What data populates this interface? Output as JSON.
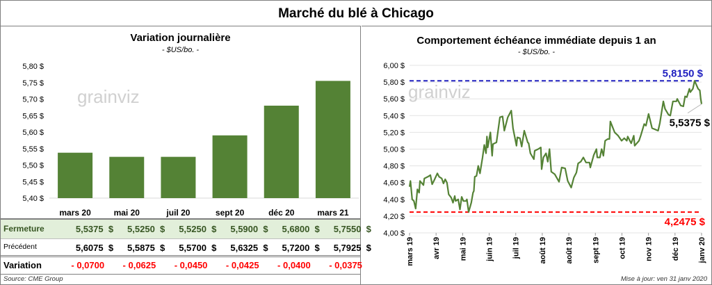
{
  "title": "Marché du blé à Chicago",
  "left_panel": {
    "title": "Variation journalière",
    "subtitle": "- $US/bo. -",
    "watermark": "grainviz",
    "table": {
      "rows": [
        {
          "label": "Fermeture",
          "values": [
            "5,5375  $",
            "5,5250  $",
            "5,5250  $",
            "5,5900  $",
            "5,6800  $",
            "5,7550  $"
          ]
        },
        {
          "label": "Précédent",
          "values": [
            "5,6075  $",
            "5,5875  $",
            "5,5700  $",
            "5,6325  $",
            "5,7200  $",
            "5,7925  $"
          ]
        },
        {
          "label": "Variation",
          "values": [
            "- 0,0700",
            "- 0,0625",
            "- 0,0450",
            "- 0,0425",
            "- 0,0400",
            "- 0,0375"
          ]
        }
      ]
    },
    "source": "Source: CME Group"
  },
  "right_panel": {
    "title": "Comportement  échéance immédiate depuis 1 an",
    "subtitle": "- $US/bo. -",
    "watermark": "grainviz",
    "update": "Mise à jour: ven 31 janv 2020"
  },
  "chart_data": [
    {
      "type": "bar",
      "categories": [
        "mars 20",
        "mai 20",
        "juil 20",
        "sept 20",
        "déc 20",
        "mars 21"
      ],
      "values": [
        5.5375,
        5.525,
        5.525,
        5.59,
        5.68,
        5.755
      ],
      "title": "Variation journalière",
      "subtitle": "- $US/bo. -",
      "ylim": [
        5.4,
        5.8
      ],
      "yticks": [
        "5,40 $",
        "5,45 $",
        "5,50 $",
        "5,55 $",
        "5,60 $",
        "5,65 $",
        "5,70 $",
        "5,75 $",
        "5,80 $"
      ],
      "color": "#548235",
      "grid": false
    },
    {
      "type": "line",
      "title": "Comportement  échéance immédiate depuis 1 an",
      "subtitle": "- $US/bo. -",
      "ylim": [
        4.0,
        6.0
      ],
      "yticks": [
        "4,00 $",
        "4,20 $",
        "4,40 $",
        "4,60 $",
        "4,80 $",
        "5,00 $",
        "5,20 $",
        "5,40 $",
        "5,60 $",
        "5,80 $",
        "6,00 $"
      ],
      "xlim": [
        "2019-03-01",
        "2020-01-31"
      ],
      "xticks": [
        "mars 19",
        "avr 19",
        "mai 19",
        "juin 19",
        "juil 19",
        "août 19",
        "août 19",
        "sept 19",
        "oct 19",
        "nov 19",
        "déc 19",
        "janv 20"
      ],
      "grid": true,
      "color": "#548235",
      "high": {
        "value": 5.815,
        "label": "5,8150 $",
        "color": "#2020c0"
      },
      "low": {
        "value": 4.2475,
        "label": "4,2475 $",
        "color": "#ff0000"
      },
      "last": {
        "value": 5.5375,
        "label": "5,5375 $"
      },
      "points": [
        [
          "2019-03-01",
          4.55
        ],
        [
          "2019-03-02",
          4.62
        ],
        [
          "2019-03-04",
          4.4
        ],
        [
          "2019-03-06",
          4.38
        ],
        [
          "2019-03-08",
          4.29
        ],
        [
          "2019-03-10",
          4.52
        ],
        [
          "2019-03-12",
          4.48
        ],
        [
          "2019-03-13",
          4.62
        ],
        [
          "2019-03-17",
          4.57
        ],
        [
          "2019-03-18",
          4.65
        ],
        [
          "2019-03-22",
          4.67
        ],
        [
          "2019-03-25",
          4.69
        ],
        [
          "2019-03-27",
          4.58
        ],
        [
          "2019-03-29",
          4.62
        ],
        [
          "2019-04-02",
          4.71
        ],
        [
          "2019-04-04",
          4.67
        ],
        [
          "2019-04-07",
          4.65
        ],
        [
          "2019-04-09",
          4.59
        ],
        [
          "2019-04-11",
          4.64
        ],
        [
          "2019-04-13",
          4.6
        ],
        [
          "2019-04-15",
          4.46
        ],
        [
          "2019-04-18",
          4.42
        ],
        [
          "2019-04-20",
          4.36
        ],
        [
          "2019-04-22",
          4.44
        ],
        [
          "2019-04-23",
          4.38
        ],
        [
          "2019-04-26",
          4.4
        ],
        [
          "2019-04-28",
          4.28
        ],
        [
          "2019-04-30",
          4.43
        ],
        [
          "2019-05-02",
          4.38
        ],
        [
          "2019-05-05",
          4.38
        ],
        [
          "2019-05-06",
          4.4
        ],
        [
          "2019-05-08",
          4.25
        ],
        [
          "2019-05-11",
          4.36
        ],
        [
          "2019-05-13",
          4.48
        ],
        [
          "2019-05-14",
          4.5
        ],
        [
          "2019-05-15",
          4.67
        ],
        [
          "2019-05-17",
          4.68
        ],
        [
          "2019-05-19",
          4.8
        ],
        [
          "2019-05-21",
          4.71
        ],
        [
          "2019-05-24",
          4.9
        ],
        [
          "2019-05-26",
          5.05
        ],
        [
          "2019-05-28",
          4.95
        ],
        [
          "2019-05-29",
          5.15
        ],
        [
          "2019-05-30",
          5.02
        ],
        [
          "2019-06-02",
          5.2
        ],
        [
          "2019-06-04",
          4.92
        ],
        [
          "2019-06-05",
          5.06
        ],
        [
          "2019-06-09",
          5.08
        ],
        [
          "2019-06-13",
          5.38
        ],
        [
          "2019-06-16",
          5.39
        ],
        [
          "2019-06-18",
          5.22
        ],
        [
          "2019-06-22",
          5.38
        ],
        [
          "2019-06-26",
          5.46
        ],
        [
          "2019-06-28",
          5.25
        ],
        [
          "2019-07-02",
          5.04
        ],
        [
          "2019-07-03",
          5.14
        ],
        [
          "2019-07-06",
          5.13
        ],
        [
          "2019-07-08",
          5.03
        ],
        [
          "2019-07-11",
          5.22
        ],
        [
          "2019-07-15",
          5.08
        ],
        [
          "2019-07-16",
          5.07
        ],
        [
          "2019-07-18",
          4.95
        ],
        [
          "2019-07-22",
          4.88
        ],
        [
          "2019-07-23",
          4.98
        ],
        [
          "2019-07-27",
          5.0
        ],
        [
          "2019-07-30",
          5.02
        ],
        [
          "2019-07-31",
          4.76
        ],
        [
          "2019-08-02",
          4.9
        ],
        [
          "2019-08-05",
          4.95
        ],
        [
          "2019-08-07",
          4.85
        ],
        [
          "2019-08-09",
          5.0
        ],
        [
          "2019-08-11",
          4.73
        ],
        [
          "2019-08-15",
          4.7
        ],
        [
          "2019-08-20",
          4.61
        ],
        [
          "2019-08-23",
          4.78
        ],
        [
          "2019-08-27",
          4.77
        ],
        [
          "2019-08-30",
          4.62
        ],
        [
          "2019-09-03",
          4.54
        ],
        [
          "2019-09-06",
          4.66
        ],
        [
          "2019-09-09",
          4.72
        ],
        [
          "2019-09-11",
          4.83
        ],
        [
          "2019-09-14",
          4.85
        ],
        [
          "2019-09-17",
          4.9
        ],
        [
          "2019-09-20",
          4.84
        ],
        [
          "2019-09-24",
          4.84
        ],
        [
          "2019-09-25",
          4.78
        ],
        [
          "2019-09-29",
          4.93
        ],
        [
          "2019-10-02",
          5.0
        ],
        [
          "2019-10-03",
          4.9
        ],
        [
          "2019-10-06",
          4.9
        ],
        [
          "2019-10-08",
          5.0
        ],
        [
          "2019-10-10",
          4.92
        ],
        [
          "2019-10-12",
          5.1
        ],
        [
          "2019-10-15",
          5.12
        ],
        [
          "2019-10-17",
          5.12
        ],
        [
          "2019-10-18",
          5.33
        ],
        [
          "2019-10-23",
          5.2
        ],
        [
          "2019-10-27",
          5.16
        ],
        [
          "2019-10-31",
          5.1
        ],
        [
          "2019-11-03",
          5.13
        ],
        [
          "2019-11-06",
          5.1
        ],
        [
          "2019-11-07",
          5.15
        ],
        [
          "2019-11-10",
          5.09
        ],
        [
          "2019-11-11",
          5.07
        ],
        [
          "2019-11-14",
          5.16
        ],
        [
          "2019-11-15",
          5.04
        ],
        [
          "2019-11-20",
          5.1
        ],
        [
          "2019-11-22",
          5.16
        ],
        [
          "2019-11-26",
          5.3
        ],
        [
          "2019-11-28",
          5.28
        ],
        [
          "2019-12-01",
          5.42
        ],
        [
          "2019-12-05",
          5.25
        ],
        [
          "2019-12-12",
          5.22
        ],
        [
          "2019-12-14",
          5.31
        ],
        [
          "2019-12-18",
          5.57
        ],
        [
          "2019-12-20",
          5.48
        ],
        [
          "2019-12-24",
          5.41
        ],
        [
          "2019-12-26",
          5.4
        ],
        [
          "2019-12-29",
          5.57
        ],
        [
          "2020-01-02",
          5.57
        ],
        [
          "2020-01-03",
          5.6
        ],
        [
          "2020-01-07",
          5.52
        ],
        [
          "2020-01-10",
          5.51
        ],
        [
          "2020-01-12",
          5.63
        ],
        [
          "2020-01-14",
          5.62
        ],
        [
          "2020-01-17",
          5.72
        ],
        [
          "2020-01-18",
          5.68
        ],
        [
          "2020-01-21",
          5.72
        ],
        [
          "2020-01-23",
          5.815
        ],
        [
          "2020-01-27",
          5.72
        ],
        [
          "2020-01-29",
          5.7
        ],
        [
          "2020-01-30",
          5.6
        ],
        [
          "2020-01-31",
          5.5375
        ]
      ]
    }
  ]
}
